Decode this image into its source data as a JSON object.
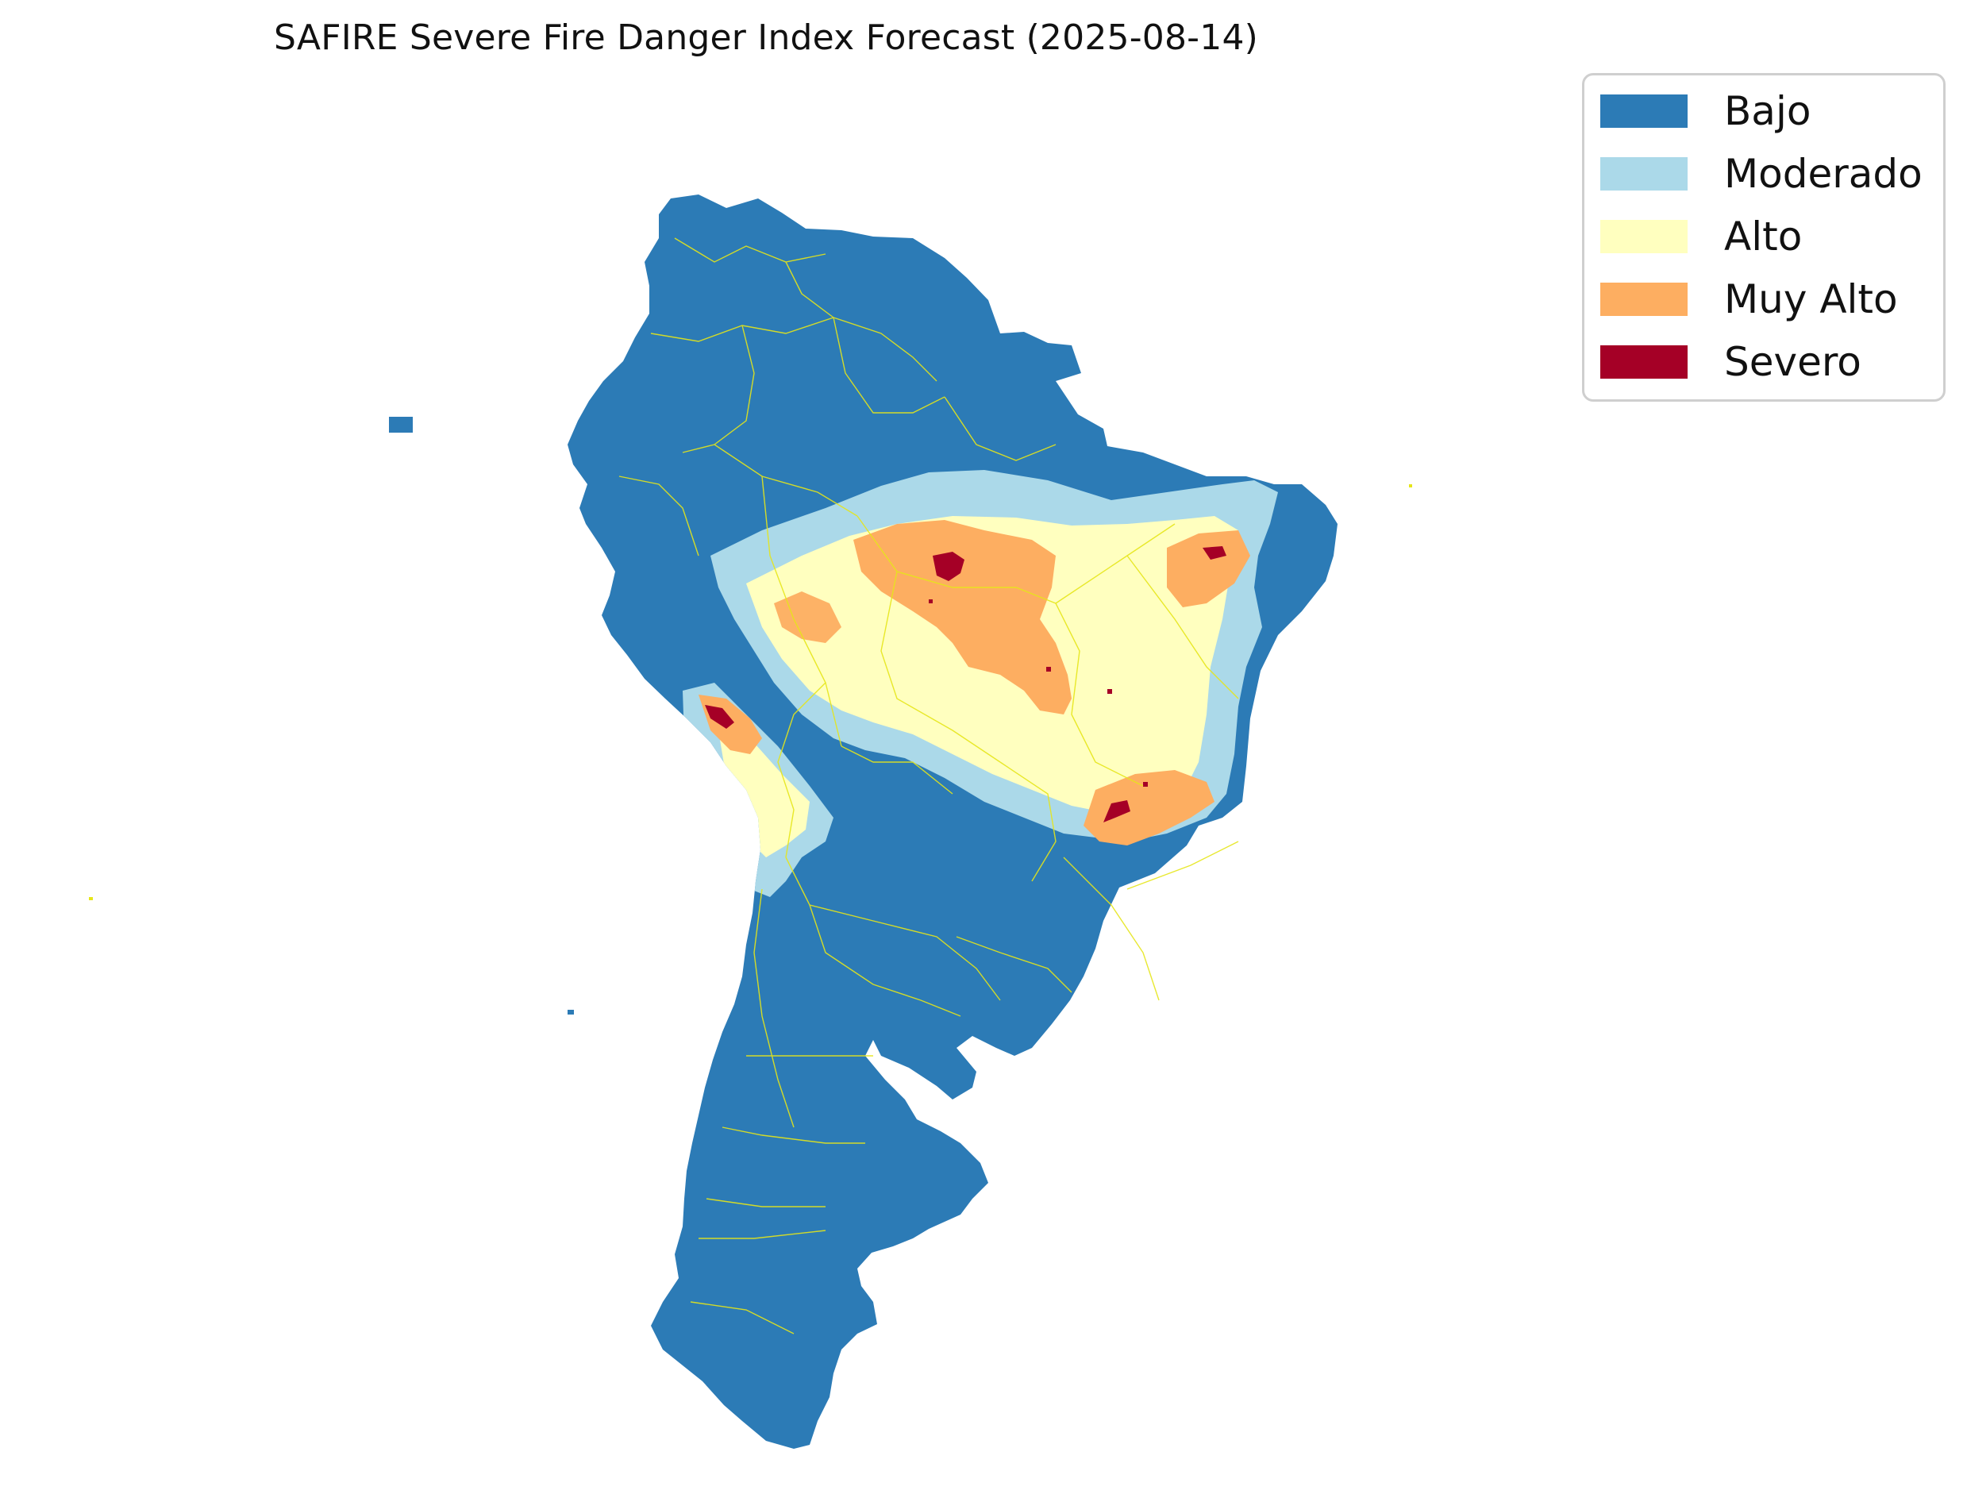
{
  "title": "SAFIRE Severe Fire Danger Index Forecast (2025-08-14)",
  "legend": {
    "items": [
      {
        "label": "Bajo",
        "color": "#2c7bb6"
      },
      {
        "label": "Moderado",
        "color": "#abd9e9"
      },
      {
        "label": "Alto",
        "color": "#ffffbf"
      },
      {
        "label": "Muy Alto",
        "color": "#fdae61"
      },
      {
        "label": "Severo",
        "color": "#a50026"
      }
    ]
  },
  "map": {
    "region": "South America",
    "boundary_color": "#e6e619"
  }
}
